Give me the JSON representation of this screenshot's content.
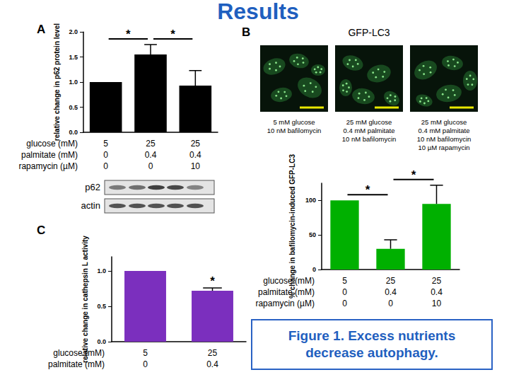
{
  "title": "Results",
  "images": {
    "title": "GFP-LC3",
    "captions": [
      [
        "5 mM glucose",
        "10 nM bafilomycin"
      ],
      [
        "25 mM glucose",
        "0.4 mM palmitate",
        "10 nM bafilomycin"
      ],
      [
        "25 mM glucose",
        "0.4 mM palmitate",
        "10 nM bafilomycin",
        "10 µM rapamycin"
      ]
    ]
  },
  "blot": {
    "rows": [
      "p62",
      "actin"
    ]
  },
  "caption": "Figure 1. Excess nutrients decrease autophagy.",
  "chart_data": [
    {
      "type": "bar",
      "panel": "A",
      "ylabel": "relative change in p62 protein level",
      "conditions": {
        "rows": [
          "glucose (mM)",
          "palmitate (mM)",
          "rapamycin (µM)"
        ],
        "columns": [
          [
            5,
            0,
            0
          ],
          [
            25,
            0.4,
            0
          ],
          [
            25,
            0.4,
            10
          ]
        ]
      },
      "values": [
        1.0,
        1.55,
        0.93
      ],
      "errors": [
        0,
        0.2,
        0.3
      ],
      "color": "#000000",
      "ylim": [
        0,
        2
      ],
      "yticks": [
        {
          "value": 0,
          "label": "0.0"
        },
        {
          "value": 0.5,
          "label": "0.5"
        },
        {
          "value": 1,
          "label": "1.0"
        },
        {
          "value": 1.5,
          "label": "1.5"
        },
        {
          "value": 2,
          "label": "2.0"
        }
      ],
      "significance": [
        {
          "from": 0,
          "to": 1,
          "label": "*"
        },
        {
          "from": 1,
          "to": 2,
          "label": "*"
        }
      ],
      "grid": false
    },
    {
      "type": "bar",
      "panel": "B",
      "ylabel": "% change in bafilomycin-induced GFP-LC3",
      "conditions": {
        "rows": [
          "glucose (mM)",
          "palmitate (mM)",
          "rapamycin (µM)"
        ],
        "columns": [
          [
            5,
            0,
            0
          ],
          [
            25,
            0.4,
            0
          ],
          [
            25,
            0.4,
            10
          ]
        ]
      },
      "values": [
        100,
        30,
        95
      ],
      "errors": [
        0,
        13,
        27
      ],
      "color": "#00b000",
      "ylim": [
        0,
        125
      ],
      "yticks": [
        0,
        50,
        100
      ],
      "significance": [
        {
          "from": 0,
          "to": 1,
          "label": "*"
        },
        {
          "from": 1,
          "to": 2,
          "label": "*"
        }
      ],
      "grid": false
    },
    {
      "type": "bar",
      "panel": "C",
      "ylabel": "relative change in cathepsin L activity",
      "conditions": {
        "rows": [
          "glucose (mM)",
          "palmitate (mM)"
        ],
        "columns": [
          [
            5,
            0
          ],
          [
            25,
            0.4
          ]
        ]
      },
      "values": [
        1.0,
        0.72
      ],
      "errors": [
        0,
        0.04
      ],
      "color": "#7b2fbe",
      "ylim": [
        0,
        1.2
      ],
      "yticks": [
        {
          "value": 0,
          "label": "0.0"
        },
        {
          "value": 0.5,
          "label": "0.5"
        },
        {
          "value": 1,
          "label": "1.0"
        }
      ],
      "significance": [
        {
          "from": 1,
          "to": 1,
          "label": "*"
        }
      ],
      "grid": false
    }
  ]
}
